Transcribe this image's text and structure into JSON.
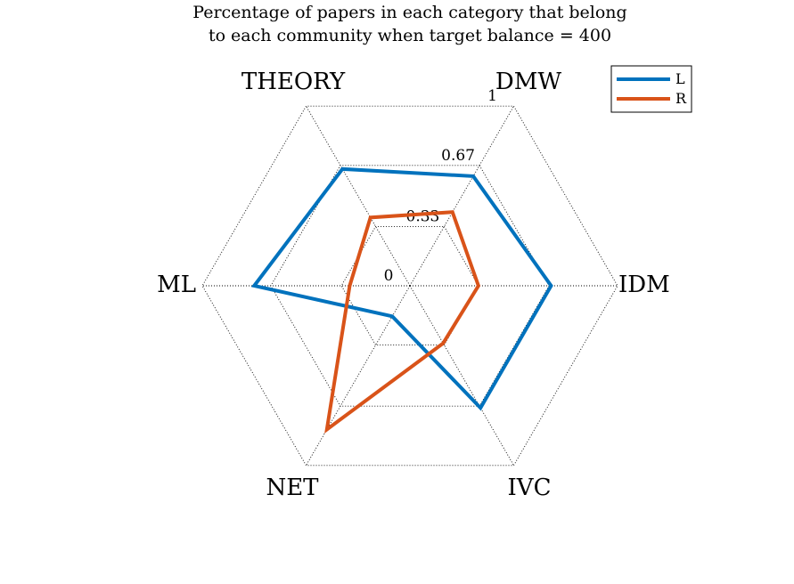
{
  "chart_data": {
    "type": "radar",
    "title": [
      "Percentage of papers in each category that belong",
      "to each community when target balance = 400"
    ],
    "categories": [
      "DMW",
      "IDM",
      "IVC",
      "NET",
      "ML",
      "THEORY"
    ],
    "rlim": [
      0,
      1
    ],
    "ticks": [
      {
        "value": 0,
        "label": "0"
      },
      {
        "value": 0.33,
        "label": "0.33"
      },
      {
        "value": 0.67,
        "label": "0.67"
      },
      {
        "value": 1,
        "label": "1"
      }
    ],
    "grid": true,
    "legend": {
      "placement": "top-right"
    },
    "series": [
      {
        "name": "L",
        "color": "#0072BD",
        "values": [
          0.61,
          0.68,
          0.68,
          0.17,
          0.75,
          0.65
        ]
      },
      {
        "name": "R",
        "color": "#D95319",
        "values": [
          0.41,
          0.33,
          0.32,
          0.8,
          0.29,
          0.38
        ]
      }
    ]
  }
}
